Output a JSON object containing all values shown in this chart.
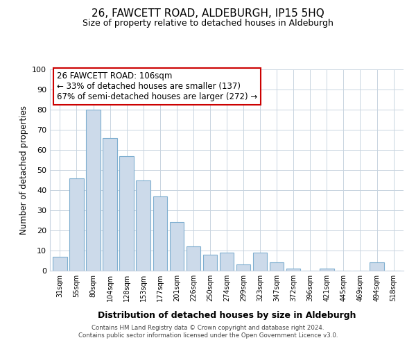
{
  "title": "26, FAWCETT ROAD, ALDEBURGH, IP15 5HQ",
  "subtitle": "Size of property relative to detached houses in Aldeburgh",
  "xlabel": "Distribution of detached houses by size in Aldeburgh",
  "ylabel": "Number of detached properties",
  "categories": [
    "31sqm",
    "55sqm",
    "80sqm",
    "104sqm",
    "128sqm",
    "153sqm",
    "177sqm",
    "201sqm",
    "226sqm",
    "250sqm",
    "274sqm",
    "299sqm",
    "323sqm",
    "347sqm",
    "372sqm",
    "396sqm",
    "421sqm",
    "445sqm",
    "469sqm",
    "494sqm",
    "518sqm"
  ],
  "values": [
    7,
    46,
    80,
    66,
    57,
    45,
    37,
    24,
    12,
    8,
    9,
    3,
    9,
    4,
    1,
    0,
    1,
    0,
    0,
    4,
    0
  ],
  "bar_color": "#ccdaea",
  "bar_edge_color": "#7fafd0",
  "ylim": [
    0,
    100
  ],
  "yticks": [
    0,
    10,
    20,
    30,
    40,
    50,
    60,
    70,
    80,
    90,
    100
  ],
  "annotation_title": "26 FAWCETT ROAD: 106sqm",
  "annotation_line1": "← 33% of detached houses are smaller (137)",
  "annotation_line2": "67% of semi-detached houses are larger (272) →",
  "annotation_box_color": "#ffffff",
  "annotation_box_edge": "#cc0000",
  "footer1": "Contains HM Land Registry data © Crown copyright and database right 2024.",
  "footer2": "Contains public sector information licensed under the Open Government Licence v3.0.",
  "bg_color": "#ffffff",
  "grid_color": "#c8d4e0"
}
